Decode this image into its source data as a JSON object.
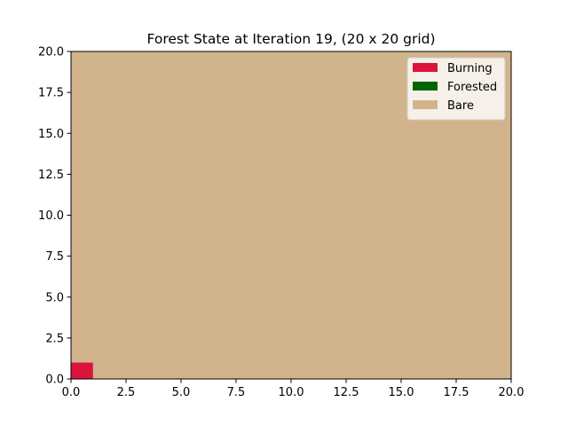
{
  "chart_data": {
    "type": "heatmap",
    "title": "Forest State at Iteration 19, (20 x 20 grid)",
    "xlabel": "",
    "ylabel": "",
    "xlim": [
      0,
      20
    ],
    "ylim": [
      0,
      20
    ],
    "xticks": [
      "0.0",
      "2.5",
      "5.0",
      "7.5",
      "10.0",
      "12.5",
      "15.0",
      "17.5",
      "20.0"
    ],
    "yticks": [
      "0.0",
      "2.5",
      "5.0",
      "7.5",
      "10.0",
      "12.5",
      "15.0",
      "17.5",
      "20.0"
    ],
    "grid": false,
    "grid_size": [
      20,
      20
    ],
    "background_state": "Bare",
    "cells": [
      {
        "x": 0,
        "y": 0,
        "state": "Burning"
      }
    ],
    "legend_position": "upper right",
    "legend": [
      {
        "label": "Burning",
        "color": "#dc143c"
      },
      {
        "label": "Forested",
        "color": "#006400"
      },
      {
        "label": "Bare",
        "color": "#d2b48c"
      }
    ]
  }
}
